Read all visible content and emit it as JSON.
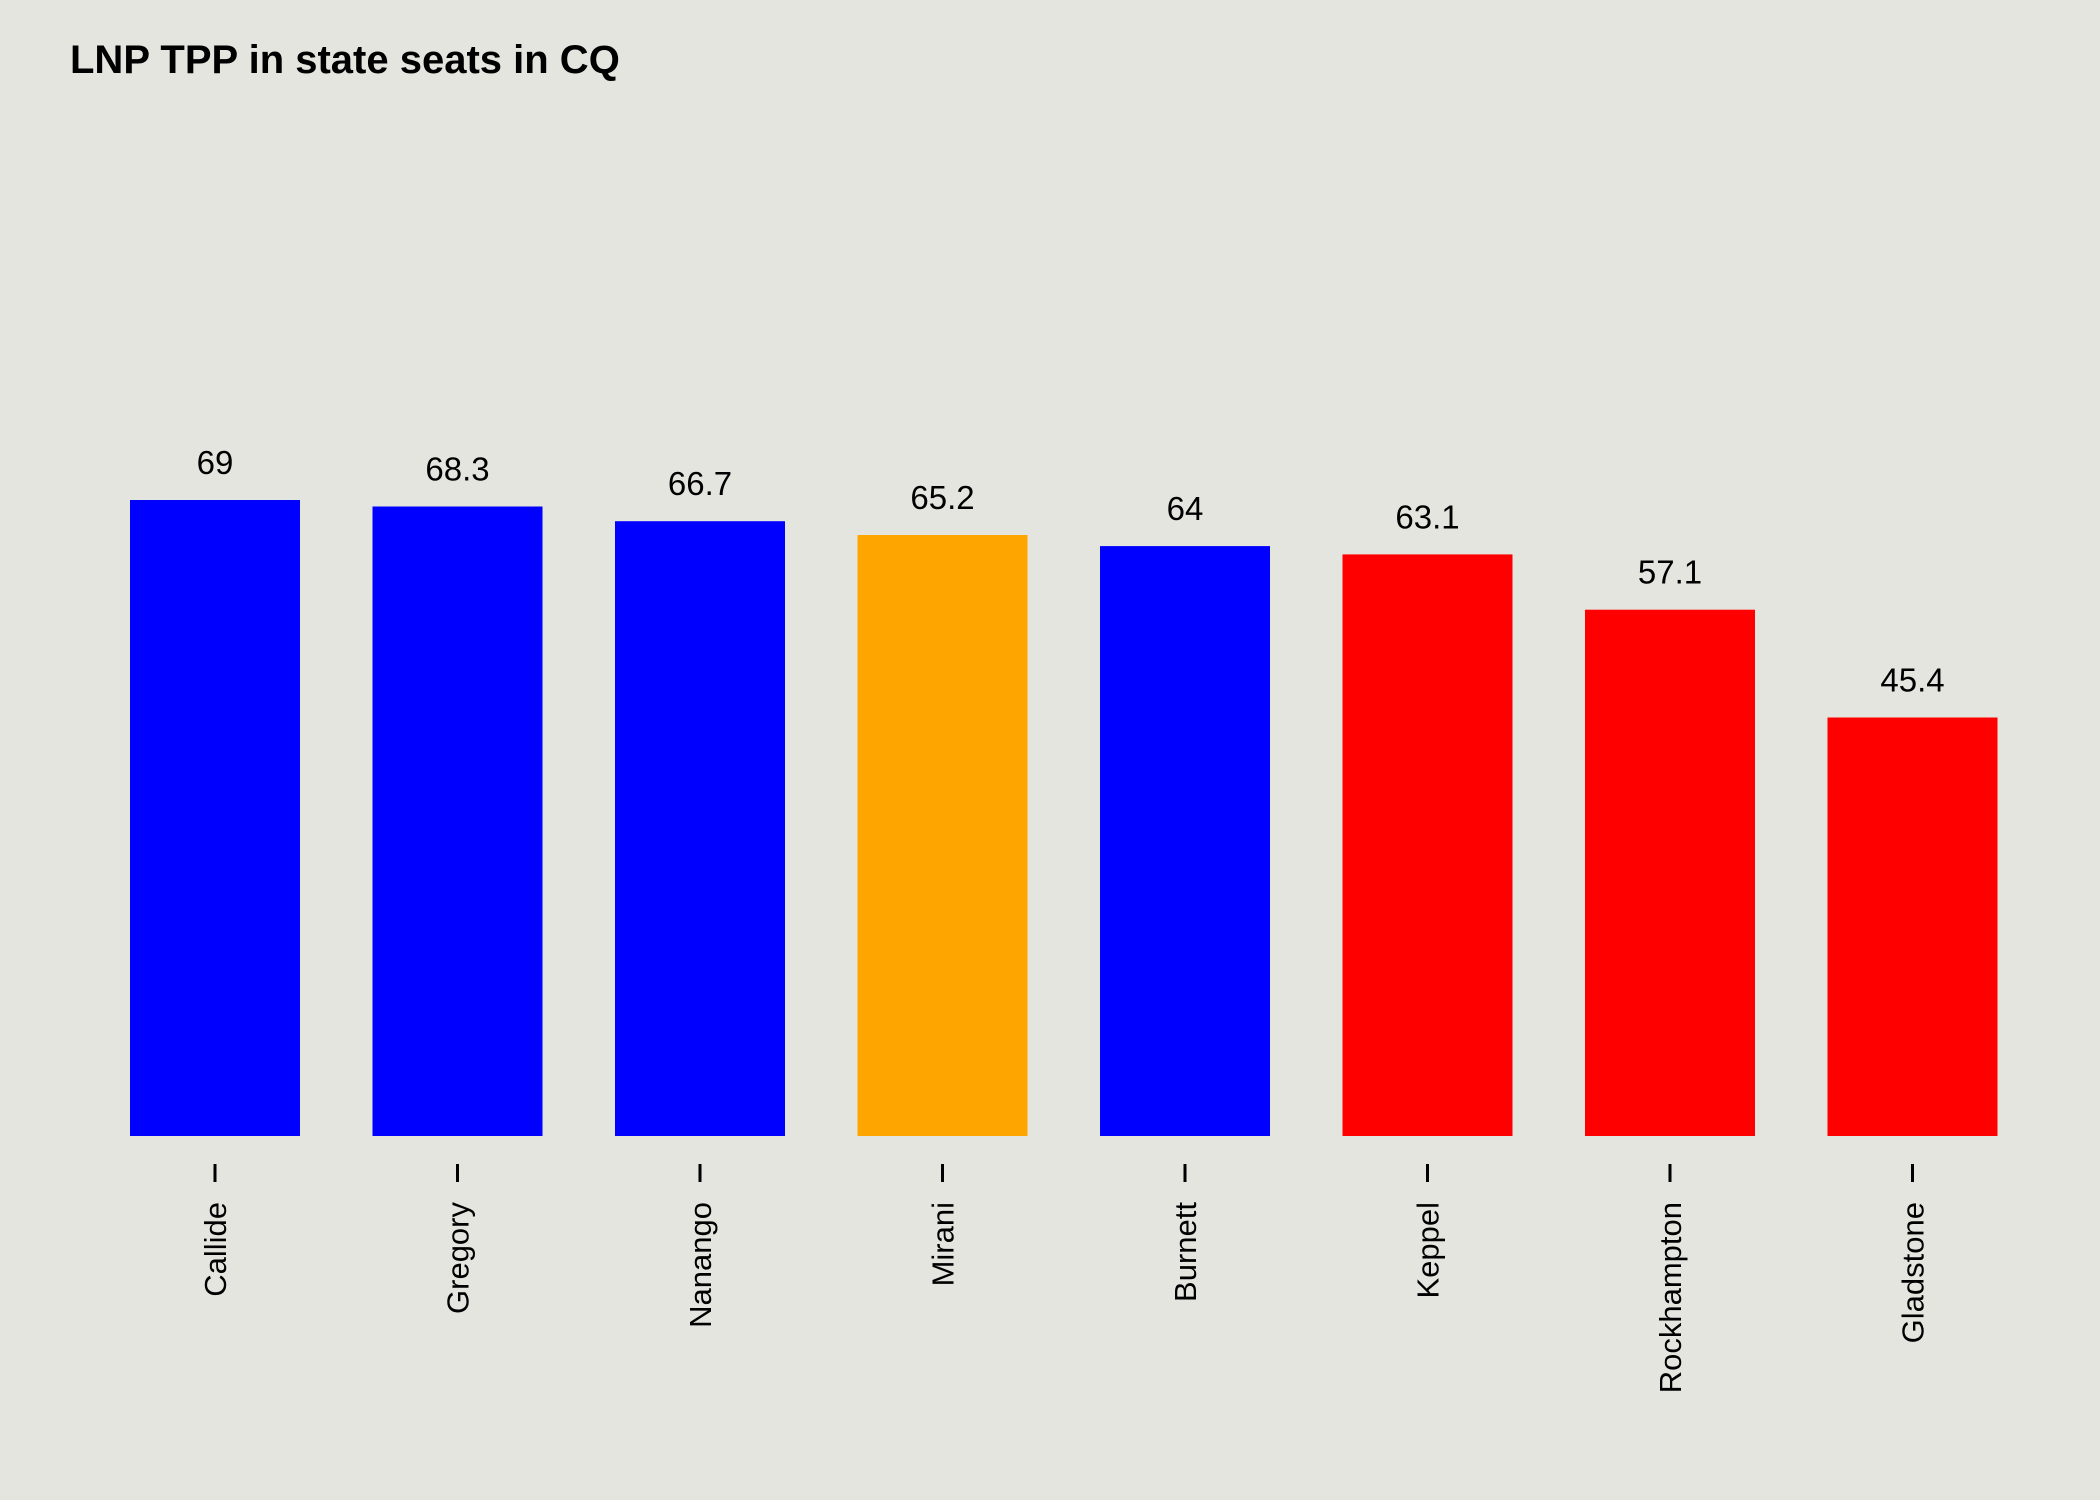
{
  "chart_data": {
    "type": "bar",
    "title": "LNP TPP in state seats in CQ",
    "xlabel": "",
    "ylabel": "",
    "ylim": [
      0,
      69
    ],
    "grid": false,
    "legend": "none",
    "categories": [
      "Callide",
      "Gregory",
      "Nanango",
      "Mirani",
      "Burnett",
      "Keppel",
      "Rockhampton",
      "Gladstone"
    ],
    "values": [
      69,
      68.3,
      66.7,
      65.2,
      64,
      63.1,
      57.1,
      45.4
    ],
    "value_labels": [
      "69",
      "68.3",
      "66.7",
      "65.2",
      "64",
      "63.1",
      "57.1",
      "45.4"
    ],
    "colors": [
      "#0000ff",
      "#0000ff",
      "#0000ff",
      "#ffa500",
      "#0000ff",
      "#ff0000",
      "#ff0000",
      "#ff0000"
    ]
  }
}
